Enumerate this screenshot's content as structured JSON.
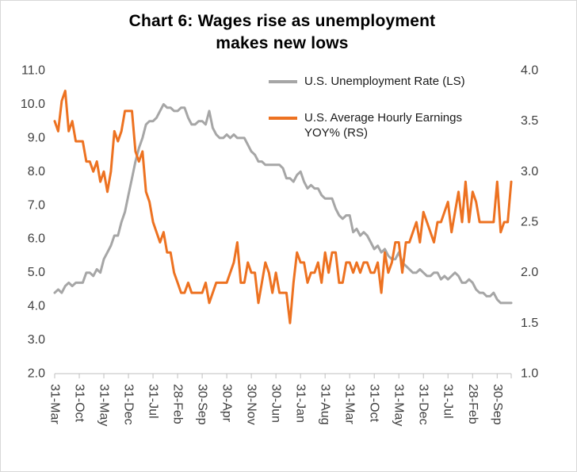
{
  "title": {
    "line1": "Chart 6: Wages rise as unemployment",
    "line2": "makes new lows"
  },
  "legend": {
    "items": [
      {
        "label": "U.S. Unemployment Rate (LS)",
        "color": "#A6A6A6"
      },
      {
        "label": "U.S. Average Hourly Earnings YOY% (RS)",
        "color": "#ED7221"
      }
    ]
  },
  "chart_data": {
    "type": "line",
    "title": "Chart 6: Wages rise as unemployment makes new lows",
    "xlabel": "",
    "ylabel_left": "U.S. Unemployment Rate (LS)",
    "ylabel_right": "U.S. Average Hourly Earnings YOY% (RS)",
    "grid": false,
    "legend_position": "top-right-inside",
    "axis_color": "#BFBFBF",
    "label_color": "#3F3F3F",
    "x_tick_interval": 7,
    "x_tick_labels": [
      "31-Mar",
      "31-Oct",
      "31-May",
      "31-Dec",
      "31-Jul",
      "28-Feb",
      "30-Sep",
      "30-Apr",
      "30-Nov",
      "30-Jun",
      "31-Jan",
      "31-Aug",
      "31-Mar",
      "31-Oct",
      "31-May",
      "31-Dec",
      "31-Jul",
      "28-Feb",
      "30-Sep"
    ],
    "left_axis": {
      "min": 2.0,
      "max": 11.0,
      "step": 1.0
    },
    "right_axis": {
      "min": 1.0,
      "max": 4.0,
      "step": 0.5
    },
    "series": [
      {
        "name": "U.S. Unemployment Rate (LS)",
        "axis": "left",
        "color": "#A6A6A6",
        "values": [
          4.4,
          4.5,
          4.4,
          4.6,
          4.7,
          4.6,
          4.7,
          4.7,
          4.7,
          5.0,
          5.0,
          4.9,
          5.1,
          5.0,
          5.4,
          5.6,
          5.8,
          6.1,
          6.1,
          6.5,
          6.8,
          7.3,
          7.8,
          8.3,
          8.7,
          9.0,
          9.4,
          9.5,
          9.5,
          9.6,
          9.8,
          10.0,
          9.9,
          9.9,
          9.8,
          9.8,
          9.9,
          9.9,
          9.6,
          9.4,
          9.4,
          9.5,
          9.5,
          9.4,
          9.8,
          9.3,
          9.1,
          9.0,
          9.0,
          9.1,
          9.0,
          9.1,
          9.0,
          9.0,
          9.0,
          8.8,
          8.6,
          8.5,
          8.3,
          8.3,
          8.2,
          8.2,
          8.2,
          8.2,
          8.2,
          8.1,
          7.8,
          7.8,
          7.7,
          7.9,
          8.0,
          7.7,
          7.5,
          7.6,
          7.5,
          7.5,
          7.3,
          7.2,
          7.2,
          7.2,
          6.9,
          6.7,
          6.6,
          6.7,
          6.7,
          6.2,
          6.3,
          6.1,
          6.2,
          6.1,
          5.9,
          5.7,
          5.8,
          5.6,
          5.7,
          5.5,
          5.4,
          5.4,
          5.6,
          5.3,
          5.2,
          5.1,
          5.0,
          5.0,
          5.1,
          5.0,
          4.9,
          4.9,
          5.0,
          5.0,
          4.8,
          4.9,
          4.8,
          4.9,
          5.0,
          4.9,
          4.7,
          4.7,
          4.8,
          4.7,
          4.5,
          4.4,
          4.4,
          4.3,
          4.3,
          4.4,
          4.2,
          4.1,
          4.1,
          4.1,
          4.1
        ]
      },
      {
        "name": "U.S. Average Hourly Earnings YOY% (RS)",
        "axis": "right",
        "color": "#ED7221",
        "values": [
          3.5,
          3.4,
          3.7,
          3.8,
          3.4,
          3.5,
          3.3,
          3.3,
          3.3,
          3.1,
          3.1,
          3.0,
          3.1,
          2.9,
          3.0,
          2.8,
          3.0,
          3.4,
          3.3,
          3.4,
          3.6,
          3.6,
          3.6,
          3.2,
          3.1,
          3.2,
          2.8,
          2.7,
          2.5,
          2.4,
          2.3,
          2.4,
          2.2,
          2.2,
          2.0,
          1.9,
          1.8,
          1.8,
          1.9,
          1.8,
          1.8,
          1.8,
          1.8,
          1.9,
          1.7,
          1.8,
          1.9,
          1.9,
          1.9,
          1.9,
          2.0,
          2.1,
          2.3,
          1.9,
          1.9,
          2.1,
          2.0,
          2.0,
          1.7,
          1.9,
          2.1,
          2.0,
          1.8,
          2.0,
          1.8,
          1.8,
          1.8,
          1.5,
          1.9,
          2.2,
          2.1,
          2.1,
          1.9,
          2.0,
          2.0,
          2.1,
          1.9,
          2.2,
          2.0,
          2.2,
          2.2,
          1.9,
          1.9,
          2.1,
          2.1,
          2.0,
          2.1,
          2.0,
          2.1,
          2.1,
          2.0,
          2.0,
          2.1,
          1.8,
          2.2,
          2.0,
          2.1,
          2.3,
          2.3,
          2.0,
          2.3,
          2.3,
          2.4,
          2.5,
          2.3,
          2.6,
          2.5,
          2.4,
          2.3,
          2.5,
          2.5,
          2.6,
          2.7,
          2.4,
          2.6,
          2.8,
          2.5,
          2.9,
          2.5,
          2.8,
          2.7,
          2.5,
          2.5,
          2.5,
          2.5,
          2.5,
          2.9,
          2.4,
          2.5,
          2.5,
          2.9
        ]
      }
    ]
  }
}
